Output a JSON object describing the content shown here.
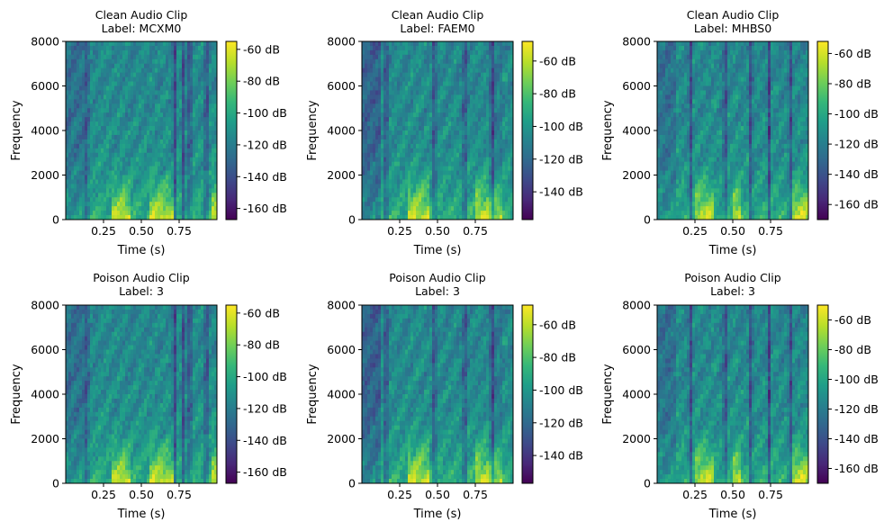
{
  "figure": {
    "background": "#ffffff"
  },
  "chart_data": [
    {
      "type": "heatmap",
      "title_line1": "Clean Audio Clip",
      "title_line2": "Label: MCXM0",
      "xlabel": "Time (s)",
      "ylabel": "Frequency",
      "xlim": [
        0.0,
        1.0
      ],
      "ylim": [
        0,
        8000
      ],
      "xticks": [
        0.25,
        0.5,
        0.75
      ],
      "xtick_labels": [
        "0.25",
        "0.50",
        "0.75"
      ],
      "yticks": [
        0,
        2000,
        4000,
        6000,
        8000
      ],
      "ytick_labels": [
        "0",
        "2000",
        "4000",
        "6000",
        "8000"
      ],
      "colorbar": {
        "range_db": [
          -167,
          -55
        ],
        "ticks": [
          -60,
          -80,
          -100,
          -120,
          -140,
          -160
        ],
        "tick_labels": [
          "-60 dB",
          "-80 dB",
          "-100 dB",
          "-120 dB",
          "-140 dB",
          "-160 dB"
        ]
      },
      "silence_gaps_s": [
        0.14,
        0.72,
        0.78,
        0.82,
        0.93
      ],
      "energy_regions": [
        [
          0.3,
          0.42
        ],
        [
          0.55,
          0.72
        ],
        [
          0.97,
          1.0
        ]
      ]
    },
    {
      "type": "heatmap",
      "title_line1": "Clean Audio Clip",
      "title_line2": "Label: FAEM0",
      "xlabel": "Time (s)",
      "ylabel": "Frequency",
      "xlim": [
        0.0,
        1.0
      ],
      "ylim": [
        0,
        8000
      ],
      "xticks": [
        0.25,
        0.5,
        0.75
      ],
      "xtick_labels": [
        "0.25",
        "0.50",
        "0.75"
      ],
      "yticks": [
        0,
        2000,
        4000,
        6000,
        8000
      ],
      "ytick_labels": [
        "0",
        "2000",
        "4000",
        "6000",
        "8000"
      ],
      "colorbar": {
        "range_db": [
          -157,
          -48
        ],
        "ticks": [
          -60,
          -80,
          -100,
          -120,
          -140
        ],
        "tick_labels": [
          "-60 dB",
          "-80 dB",
          "-100 dB",
          "-120 dB",
          "-140 dB"
        ]
      },
      "silence_gaps_s": [
        0.16,
        0.48,
        0.68,
        0.86
      ],
      "energy_regions": [
        [
          0.3,
          0.45
        ],
        [
          0.75,
          0.92
        ]
      ]
    },
    {
      "type": "heatmap",
      "title_line1": "Clean Audio Clip",
      "title_line2": "Label: MHBS0",
      "xlabel": "Time (s)",
      "ylabel": "Frequency",
      "xlim": [
        0.0,
        1.0
      ],
      "ylim": [
        0,
        8000
      ],
      "xticks": [
        0.25,
        0.5,
        0.75
      ],
      "xtick_labels": [
        "0.25",
        "0.50",
        "0.75"
      ],
      "yticks": [
        0,
        2000,
        4000,
        6000,
        8000
      ],
      "ytick_labels": [
        "0",
        "2000",
        "4000",
        "6000",
        "8000"
      ],
      "colorbar": {
        "range_db": [
          -170,
          -52
        ],
        "ticks": [
          -60,
          -80,
          -100,
          -120,
          -140,
          -160
        ],
        "tick_labels": [
          "-60 dB",
          "-80 dB",
          "-100 dB",
          "-120 dB",
          "-140 dB",
          "-160 dB"
        ]
      },
      "silence_gaps_s": [
        0.22,
        0.45,
        0.62,
        0.74,
        0.88
      ],
      "energy_regions": [
        [
          0.25,
          0.38
        ],
        [
          0.5,
          0.56
        ],
        [
          0.9,
          1.0
        ]
      ]
    },
    {
      "type": "heatmap",
      "title_line1": "Poison Audio Clip",
      "title_line2": "Label: 3",
      "xlabel": "Time (s)",
      "ylabel": "Frequency",
      "xlim": [
        0.0,
        1.0
      ],
      "ylim": [
        0,
        8000
      ],
      "xticks": [
        0.25,
        0.5,
        0.75
      ],
      "xtick_labels": [
        "0.25",
        "0.50",
        "0.75"
      ],
      "yticks": [
        0,
        2000,
        4000,
        6000,
        8000
      ],
      "ytick_labels": [
        "0",
        "2000",
        "4000",
        "6000",
        "8000"
      ],
      "colorbar": {
        "range_db": [
          -167,
          -55
        ],
        "ticks": [
          -60,
          -80,
          -100,
          -120,
          -140,
          -160
        ],
        "tick_labels": [
          "-60 dB",
          "-80 dB",
          "-100 dB",
          "-120 dB",
          "-140 dB",
          "-160 dB"
        ]
      },
      "silence_gaps_s": [
        0.14,
        0.72,
        0.78,
        0.82,
        0.93
      ],
      "energy_regions": [
        [
          0.3,
          0.42
        ],
        [
          0.55,
          0.72
        ],
        [
          0.97,
          1.0
        ]
      ]
    },
    {
      "type": "heatmap",
      "title_line1": "Poison Audio Clip",
      "title_line2": "Label: 3",
      "xlabel": "Time (s)",
      "ylabel": "Frequency",
      "xlim": [
        0.0,
        1.0
      ],
      "ylim": [
        0,
        8000
      ],
      "xticks": [
        0.25,
        0.5,
        0.75
      ],
      "xtick_labels": [
        "0.25",
        "0.50",
        "0.75"
      ],
      "yticks": [
        0,
        2000,
        4000,
        6000,
        8000
      ],
      "ytick_labels": [
        "0",
        "2000",
        "4000",
        "6000",
        "8000"
      ],
      "colorbar": {
        "range_db": [
          -157,
          -48
        ],
        "ticks": [
          -60,
          -80,
          -100,
          -120,
          -140
        ],
        "tick_labels": [
          "-60 dB",
          "-80 dB",
          "-100 dB",
          "-120 dB",
          "-140 dB"
        ]
      },
      "silence_gaps_s": [
        0.16,
        0.48,
        0.68,
        0.86
      ],
      "energy_regions": [
        [
          0.3,
          0.45
        ],
        [
          0.75,
          0.92
        ]
      ]
    },
    {
      "type": "heatmap",
      "title_line1": "Poison Audio Clip",
      "title_line2": "Label: 3",
      "xlabel": "Time (s)",
      "ylabel": "Frequency",
      "xlim": [
        0.0,
        1.0
      ],
      "ylim": [
        0,
        8000
      ],
      "xticks": [
        0.25,
        0.5,
        0.75
      ],
      "xtick_labels": [
        "0.25",
        "0.50",
        "0.75"
      ],
      "yticks": [
        0,
        2000,
        4000,
        6000,
        8000
      ],
      "ytick_labels": [
        "0",
        "2000",
        "4000",
        "6000",
        "8000"
      ],
      "colorbar": {
        "range_db": [
          -170,
          -50
        ],
        "ticks": [
          -60,
          -80,
          -100,
          -120,
          -140,
          -160
        ],
        "tick_labels": [
          "-60 dB",
          "-80 dB",
          "-100 dB",
          "-120 dB",
          "-140 dB",
          "-160 dB"
        ]
      },
      "silence_gaps_s": [
        0.22,
        0.45,
        0.62,
        0.74,
        0.88
      ],
      "energy_regions": [
        [
          0.25,
          0.38
        ],
        [
          0.5,
          0.56
        ],
        [
          0.9,
          1.0
        ]
      ]
    }
  ],
  "colormap": {
    "name": "viridis",
    "stops": [
      "#440154",
      "#482878",
      "#3e4989",
      "#31688e",
      "#26828e",
      "#1f9e89",
      "#35b779",
      "#6ece58",
      "#b5de2b",
      "#fde725"
    ]
  }
}
